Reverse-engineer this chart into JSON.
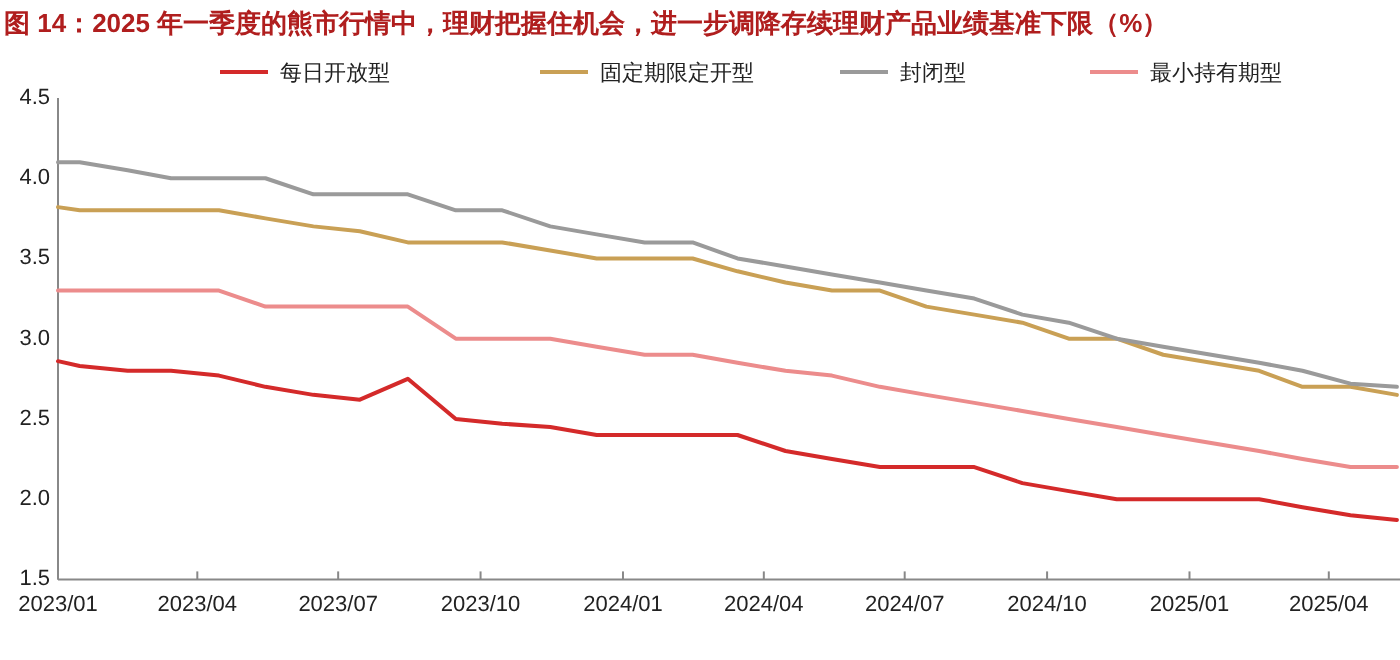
{
  "chart_data": {
    "type": "line",
    "title": "图 14：2025 年一季度的熊市行情中，理财把握住机会，进一步调降存续理财产品业绩基准下限（%）",
    "x": [
      "2023-01-01",
      "2023-01-15",
      "2023-02-15",
      "2023-03-15",
      "2023-04-15",
      "2023-05-15",
      "2023-06-15",
      "2023-07-15",
      "2023-08-15",
      "2023-09-15",
      "2023-10-15",
      "2023-11-15",
      "2023-12-15",
      "2024-01-15",
      "2024-02-15",
      "2024-03-15",
      "2024-04-15",
      "2024-05-15",
      "2024-06-15",
      "2024-07-15",
      "2024-08-15",
      "2024-09-15",
      "2024-10-15",
      "2024-11-15",
      "2024-12-15",
      "2025-01-15",
      "2025-02-15",
      "2025-03-15",
      "2025-04-15",
      "2025-05-15"
    ],
    "series": [
      {
        "name": "每日开放型",
        "color": "#d42a2a",
        "values": [
          2.86,
          2.83,
          2.8,
          2.8,
          2.77,
          2.7,
          2.65,
          2.62,
          2.75,
          2.5,
          2.47,
          2.45,
          2.4,
          2.4,
          2.4,
          2.4,
          2.3,
          2.25,
          2.2,
          2.2,
          2.2,
          2.1,
          2.05,
          2.0,
          2.0,
          2.0,
          2.0,
          1.95,
          1.9,
          1.87
        ]
      },
      {
        "name": "固定期限定开型",
        "color": "#c9a055",
        "values": [
          3.82,
          3.8,
          3.8,
          3.8,
          3.8,
          3.75,
          3.7,
          3.67,
          3.6,
          3.6,
          3.6,
          3.55,
          3.5,
          3.5,
          3.5,
          3.42,
          3.35,
          3.3,
          3.3,
          3.2,
          3.15,
          3.1,
          3.0,
          3.0,
          2.9,
          2.85,
          2.8,
          2.7,
          2.7,
          2.65
        ]
      },
      {
        "name": "封闭型",
        "color": "#9a9a9a",
        "values": [
          4.1,
          4.1,
          4.05,
          4.0,
          4.0,
          4.0,
          3.9,
          3.9,
          3.9,
          3.8,
          3.8,
          3.7,
          3.65,
          3.6,
          3.6,
          3.5,
          3.45,
          3.4,
          3.35,
          3.3,
          3.25,
          3.15,
          3.1,
          3.0,
          2.95,
          2.9,
          2.85,
          2.8,
          2.72,
          2.7
        ]
      },
      {
        "name": "最小持有期型",
        "color": "#ec8c8c",
        "values": [
          3.3,
          3.3,
          3.3,
          3.3,
          3.3,
          3.2,
          3.2,
          3.2,
          3.2,
          3.0,
          3.0,
          3.0,
          2.95,
          2.9,
          2.9,
          2.85,
          2.8,
          2.77,
          2.7,
          2.65,
          2.6,
          2.55,
          2.5,
          2.45,
          2.4,
          2.35,
          2.3,
          2.25,
          2.2,
          2.2
        ]
      }
    ],
    "xlim": [
      "2023-01-01",
      "2025-05-17"
    ],
    "xticks": [
      {
        "value": "2023-01-01",
        "label": "2023/01"
      },
      {
        "value": "2023-04-01",
        "label": "2023/04"
      },
      {
        "value": "2023-07-01",
        "label": "2023/07"
      },
      {
        "value": "2023-10-01",
        "label": "2023/10"
      },
      {
        "value": "2024-01-01",
        "label": "2024/01"
      },
      {
        "value": "2024-04-01",
        "label": "2024/04"
      },
      {
        "value": "2024-07-01",
        "label": "2024/07"
      },
      {
        "value": "2024-10-01",
        "label": "2024/10"
      },
      {
        "value": "2025-01-01",
        "label": "2025/01"
      },
      {
        "value": "2025-04-01",
        "label": "2025/04"
      }
    ],
    "ylim": [
      1.5,
      4.5
    ],
    "yticks": [
      1.5,
      {
        "value": 2,
        "label": "2.0"
      },
      2.5,
      {
        "value": 3,
        "label": "3.0"
      },
      3.5,
      {
        "value": 4,
        "label": "4.0"
      },
      4.5
    ],
    "legend": "top"
  }
}
